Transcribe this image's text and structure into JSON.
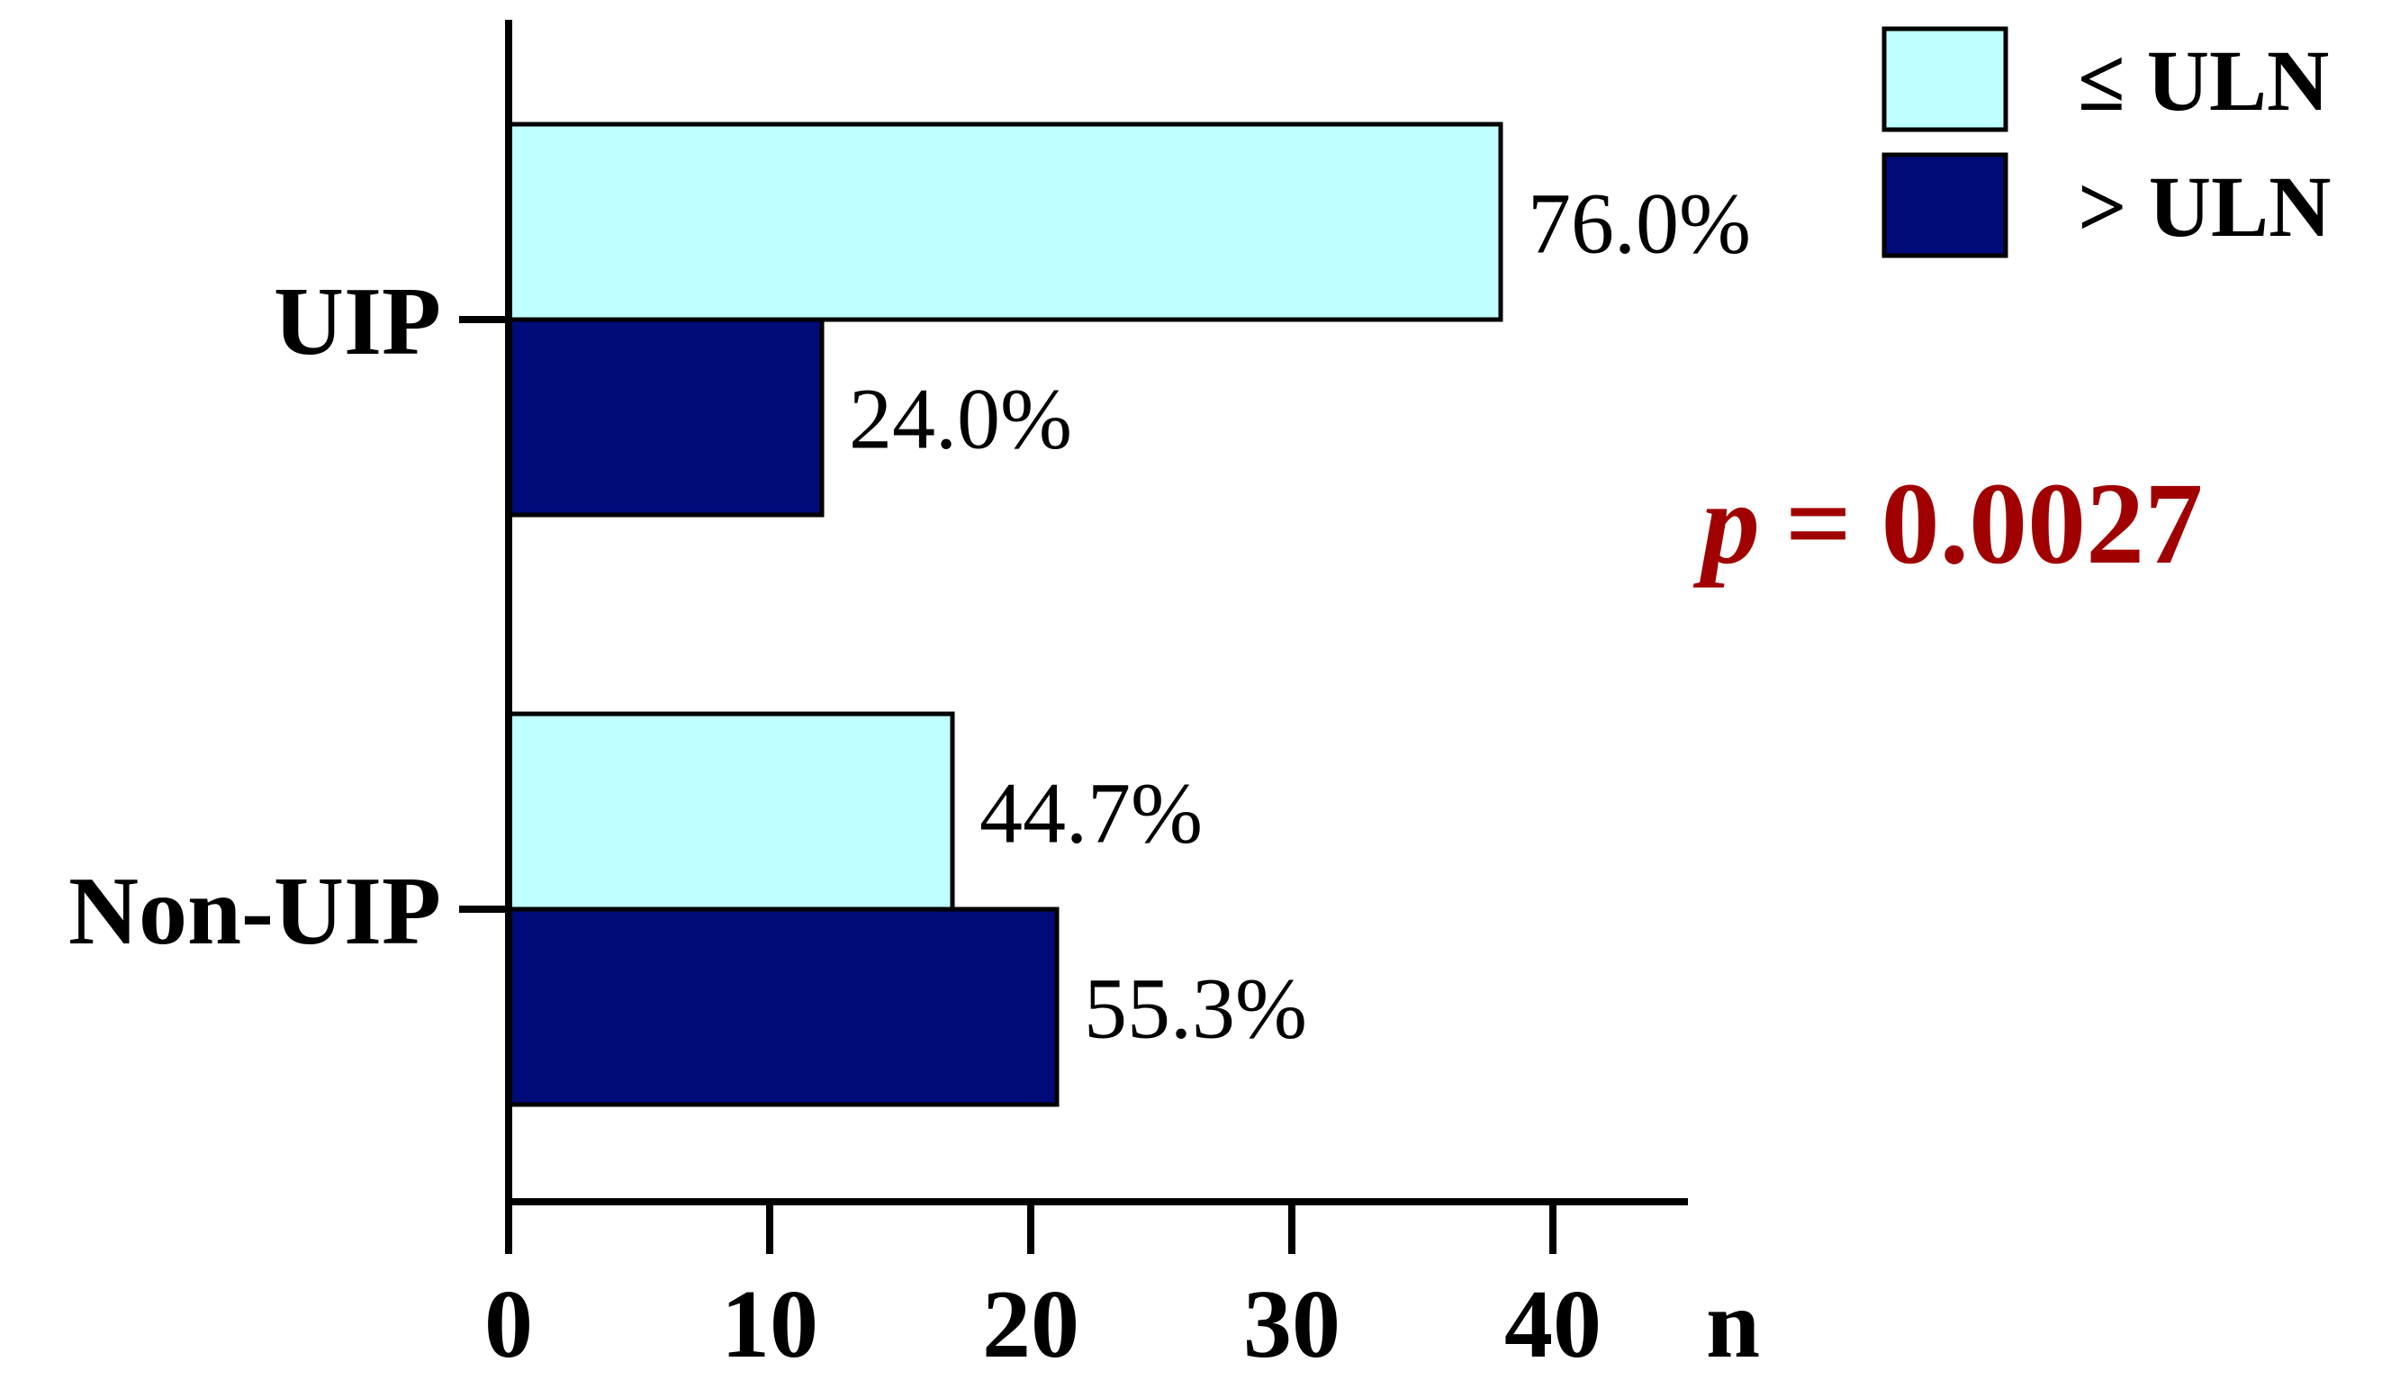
{
  "chart_data": {
    "type": "bar",
    "orientation": "horizontal",
    "categories": [
      "UIP",
      "Non-UIP"
    ],
    "series": [
      {
        "name": "≤ ULN",
        "values": [
          38,
          17
        ],
        "labels": [
          "76.0%",
          "44.7%"
        ],
        "color": "#bfffff"
      },
      {
        "name": "> ULN",
        "values": [
          12,
          21
        ],
        "labels": [
          "24.0%",
          "55.3%"
        ],
        "color": "#000a78"
      }
    ],
    "xlabel": "n",
    "xticks": [
      0,
      10,
      20,
      30,
      40
    ],
    "xlim": [
      0,
      45
    ],
    "grid": false,
    "legend_position": "top-right",
    "annotation": {
      "prefix": "p",
      "text": "= 0.0027",
      "color": "#a10000"
    }
  }
}
